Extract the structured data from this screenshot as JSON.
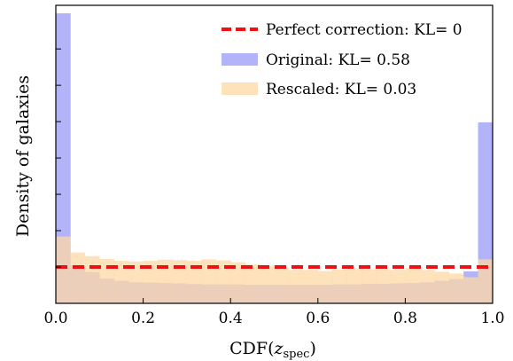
{
  "chart_data": {
    "type": "bar",
    "xlabel": "CDF(",
    "xlabel_sub_var": "z",
    "xlabel_subscript": "spec",
    "xlabel_close": ")",
    "ylabel": "Density of galaxies",
    "xlim": [
      0,
      1
    ],
    "ylim": [
      0,
      8.2
    ],
    "x_ticks": [
      "0.0",
      "0.2",
      "0.4",
      "0.6",
      "0.8",
      "1.0"
    ],
    "x_tick_values": [
      0,
      0.2,
      0.4,
      0.6,
      0.8,
      1.0
    ],
    "y_tick_values": [
      1,
      2,
      3,
      4,
      5,
      6,
      7
    ],
    "y_tick_labels_shown": false,
    "bin_edges": [
      0,
      0.0333,
      0.0667,
      0.1,
      0.1333,
      0.1667,
      0.2,
      0.2333,
      0.2667,
      0.3,
      0.3333,
      0.3667,
      0.4,
      0.4333,
      0.4667,
      0.5,
      0.5333,
      0.5667,
      0.6,
      0.6333,
      0.6667,
      0.7,
      0.7333,
      0.7667,
      0.8,
      0.8333,
      0.8667,
      0.9,
      0.9333,
      0.9667,
      1.0
    ],
    "series": [
      {
        "name": "Original: KL= 0.58",
        "color": "#8080f5",
        "opacity": 0.6,
        "values": [
          7.98,
          1.04,
          0.86,
          0.68,
          0.62,
          0.58,
          0.57,
          0.56,
          0.55,
          0.53,
          0.52,
          0.52,
          0.52,
          0.51,
          0.51,
          0.51,
          0.51,
          0.51,
          0.51,
          0.52,
          0.52,
          0.54,
          0.54,
          0.55,
          0.56,
          0.58,
          0.62,
          0.67,
          0.88,
          4.98
        ]
      },
      {
        "name": "Rescaled: KL= 0.03",
        "color": "#fdd8a4",
        "opacity": 0.75,
        "values": [
          1.84,
          1.4,
          1.3,
          1.22,
          1.17,
          1.15,
          1.17,
          1.2,
          1.19,
          1.17,
          1.21,
          1.18,
          1.13,
          1.07,
          1.04,
          0.97,
          0.92,
          0.92,
          0.89,
          0.93,
          0.95,
          0.94,
          0.93,
          0.92,
          0.97,
          0.92,
          0.87,
          0.82,
          0.72,
          1.21
        ]
      }
    ],
    "reference_line": {
      "name": "Perfect correction: KL= 0",
      "y": 1.0,
      "color": "#ee1111",
      "style": "dashed"
    },
    "legend_position": "top-right",
    "grid": false
  }
}
